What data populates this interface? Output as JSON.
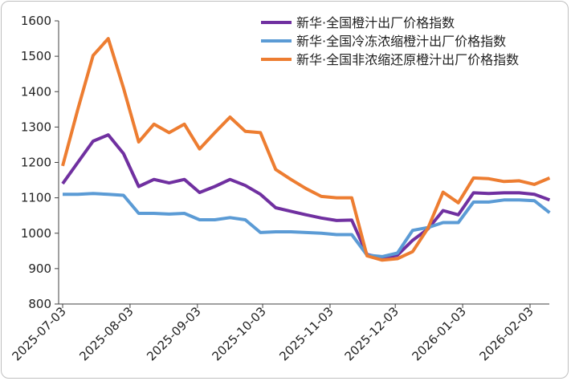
{
  "chart_data": {
    "type": "line",
    "title": "",
    "xlabel": "",
    "ylabel": "",
    "ylim": [
      800,
      1600
    ],
    "yticks": [
      800,
      900,
      1000,
      1100,
      1200,
      1300,
      1400,
      1500,
      1600
    ],
    "y_tick_labels": [
      "800",
      "900",
      "1000",
      "1100",
      "1200",
      "1300",
      "1400",
      "1500",
      "1600"
    ],
    "x_tick_labels": [
      "2025-07-03",
      "2025-08-03",
      "2025-09-03",
      "2025-10-03",
      "2025-11-03",
      "2025-12-03",
      "2026-01-03",
      "2026-02-03"
    ],
    "x": [
      "2025-07-03",
      "2025-07-10",
      "2025-07-17",
      "2025-07-24",
      "2025-07-31",
      "2025-08-07",
      "2025-08-14",
      "2025-08-21",
      "2025-08-28",
      "2025-09-04",
      "2025-09-11",
      "2025-09-18",
      "2025-09-25",
      "2025-10-02",
      "2025-10-09",
      "2025-10-16",
      "2025-10-23",
      "2025-10-30",
      "2025-11-06",
      "2025-11-13",
      "2025-11-20",
      "2025-11-27",
      "2025-12-04",
      "2025-12-11",
      "2025-12-18",
      "2025-12-25",
      "2026-01-01",
      "2026-01-08",
      "2026-01-15",
      "2026-01-22",
      "2026-01-29",
      "2026-02-05",
      "2026-02-12"
    ],
    "grid": false,
    "legend_position": "top-right",
    "series": [
      {
        "name": "新华·全国橙汁出厂价格指数",
        "color": "#7030a0",
        "values": [
          1140,
          1200,
          1260,
          1278,
          1225,
          1132,
          1152,
          1142,
          1152,
          1115,
          1132,
          1152,
          1135,
          1110,
          1072,
          1062,
          1052,
          1043,
          1036,
          1037,
          940,
          930,
          938,
          980,
          1012,
          1064,
          1052,
          1114,
          1112,
          1114,
          1114,
          1110,
          1094
        ]
      },
      {
        "name": "新华·全国冷冻浓缩橙汁出厂价格指数",
        "color": "#5b9bd5",
        "values": [
          1110,
          1110,
          1112,
          1110,
          1107,
          1056,
          1056,
          1054,
          1056,
          1038,
          1038,
          1044,
          1038,
          1002,
          1004,
          1004,
          1002,
          1000,
          996,
          996,
          938,
          934,
          944,
          1008,
          1016,
          1030,
          1030,
          1088,
          1088,
          1094,
          1094,
          1092,
          1058
        ]
      },
      {
        "name": "新华·全国非浓缩还原橙汁出厂价格指数",
        "color": "#ed7d31",
        "values": [
          1190,
          1350,
          1502,
          1550,
          1410,
          1258,
          1308,
          1284,
          1308,
          1238,
          1284,
          1328,
          1288,
          1284,
          1180,
          1152,
          1126,
          1104,
          1100,
          1100,
          936,
          924,
          928,
          948,
          1014,
          1116,
          1086,
          1156,
          1154,
          1146,
          1148,
          1138,
          1156
        ]
      }
    ]
  }
}
